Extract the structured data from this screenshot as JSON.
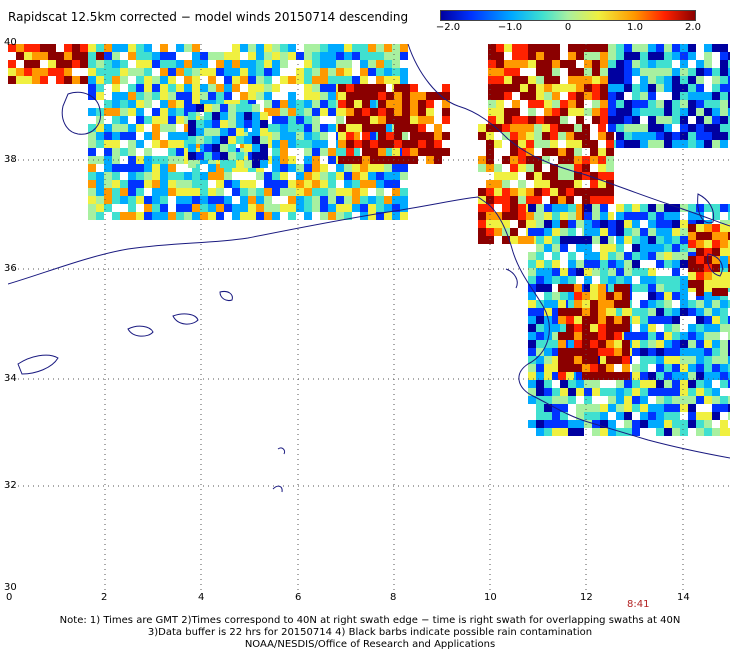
{
  "title": "Rapidscat 12.5km corrected − model winds 20150714 descending",
  "colorbar": {
    "ticks": [
      "−2.0",
      "−1.0",
      "0",
      "1.0",
      "2.0"
    ],
    "colors": [
      "#0000a0",
      "#0033ff",
      "#00aaff",
      "#40e0d0",
      "#a8f0a0",
      "#f0f040",
      "#ff9900",
      "#ff2200",
      "#8b0000"
    ]
  },
  "axes": {
    "x_ticks": [
      "0",
      "2",
      "4",
      "6",
      "8",
      "10",
      "12",
      "14"
    ],
    "y_ticks": [
      "40",
      "38",
      "36",
      "34",
      "32",
      "30"
    ]
  },
  "time_label": "8:41",
  "notes": [
    "Note: 1) Times are GMT 2)Times correspond to 40N at right swath edge − time is right swath for overlapping swaths at 40N",
    "3)Data buffer is 22 hrs for 20150714 4) Black barbs indicate possible rain contamination",
    "NOAA/NESDIS/Office of Research and Applications"
  ]
}
